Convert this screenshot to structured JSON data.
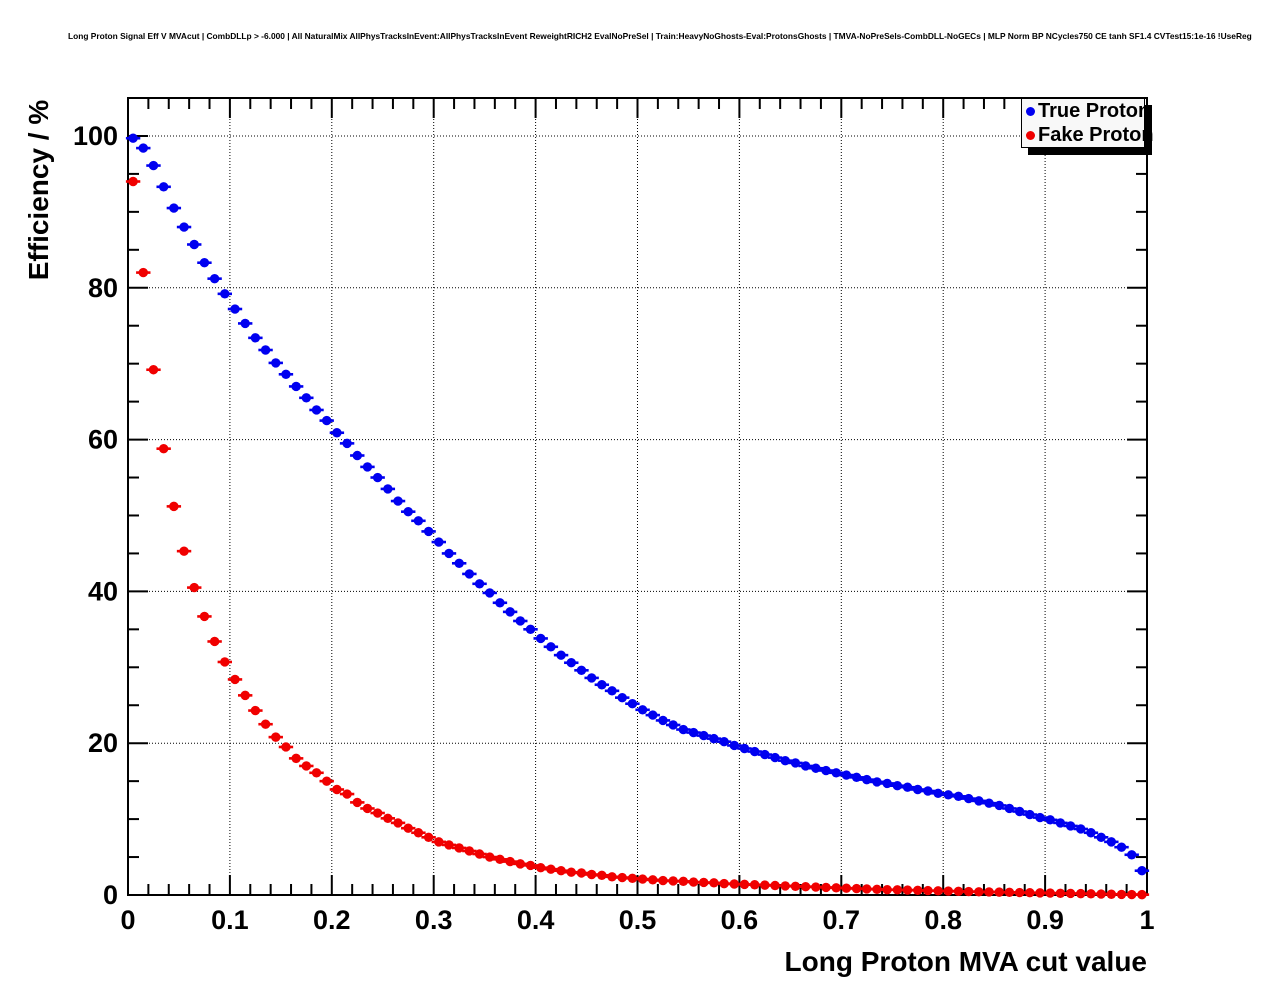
{
  "chart_data": {
    "type": "scatter",
    "title": "Long Proton Signal Eff V MVAcut | CombDLLp > -6.000 | All NaturalMix AllPhysTracksInEvent:AllPhysTracksInEvent ReweightRICH2 EvalNoPreSel | Train:HeavyNoGhosts-Eval:ProtonsGhosts | TMVA-NoPreSels-CombDLL-NoGECs | MLP Norm BP NCycles750 CE tanh SF1.4 CVTest15:1e-16 !UseReg",
    "xlabel": "Long Proton MVA cut value",
    "ylabel": "Efficiency / %",
    "xlim": [
      0,
      1
    ],
    "ylim": [
      0,
      105
    ],
    "grid": true,
    "x_ticks": [
      {
        "v": 0.0,
        "label": "0"
      },
      {
        "v": 0.1,
        "label": "0.1"
      },
      {
        "v": 0.2,
        "label": "0.2"
      },
      {
        "v": 0.3,
        "label": "0.3"
      },
      {
        "v": 0.4,
        "label": "0.4"
      },
      {
        "v": 0.5,
        "label": "0.5"
      },
      {
        "v": 0.6,
        "label": "0.6"
      },
      {
        "v": 0.7,
        "label": "0.7"
      },
      {
        "v": 0.8,
        "label": "0.8"
      },
      {
        "v": 0.9,
        "label": "0.9"
      },
      {
        "v": 1.0,
        "label": "1"
      }
    ],
    "y_ticks": [
      {
        "v": 0,
        "label": "0"
      },
      {
        "v": 20,
        "label": "20"
      },
      {
        "v": 40,
        "label": "40"
      },
      {
        "v": 60,
        "label": "60"
      },
      {
        "v": 80,
        "label": "80"
      },
      {
        "v": 100,
        "label": "100"
      }
    ],
    "x_minor_step": 0.02,
    "y_minor_step": 5,
    "bin_half_width": 0.005,
    "legend": {
      "position": "top-right",
      "entries": [
        {
          "label": "True Proton",
          "color": "#0000f0"
        },
        {
          "label": "Fake Proton",
          "color": "#f00000"
        }
      ]
    },
    "x": [
      0.005,
      0.015,
      0.025,
      0.035,
      0.045,
      0.055,
      0.065,
      0.075,
      0.085,
      0.095,
      0.105,
      0.115,
      0.125,
      0.135,
      0.145,
      0.155,
      0.165,
      0.175,
      0.185,
      0.195,
      0.205,
      0.215,
      0.225,
      0.235,
      0.245,
      0.255,
      0.265,
      0.275,
      0.285,
      0.295,
      0.305,
      0.315,
      0.325,
      0.335,
      0.345,
      0.355,
      0.365,
      0.375,
      0.385,
      0.395,
      0.405,
      0.415,
      0.425,
      0.435,
      0.445,
      0.455,
      0.465,
      0.475,
      0.485,
      0.495,
      0.505,
      0.515,
      0.525,
      0.535,
      0.545,
      0.555,
      0.565,
      0.575,
      0.585,
      0.595,
      0.605,
      0.615,
      0.625,
      0.635,
      0.645,
      0.655,
      0.665,
      0.675,
      0.685,
      0.695,
      0.705,
      0.715,
      0.725,
      0.735,
      0.745,
      0.755,
      0.765,
      0.775,
      0.785,
      0.795,
      0.805,
      0.815,
      0.825,
      0.835,
      0.845,
      0.855,
      0.865,
      0.875,
      0.885,
      0.895,
      0.905,
      0.915,
      0.925,
      0.935,
      0.945,
      0.955,
      0.965,
      0.975,
      0.985,
      0.995
    ],
    "series": [
      {
        "name": "True Proton",
        "color": "#0000f0",
        "values": [
          99.7,
          98.4,
          96.1,
          93.3,
          90.5,
          88.0,
          85.7,
          83.3,
          81.2,
          79.2,
          77.2,
          75.3,
          73.4,
          71.8,
          70.1,
          68.6,
          67.0,
          65.5,
          63.9,
          62.5,
          60.9,
          59.5,
          57.9,
          56.4,
          55.0,
          53.5,
          51.9,
          50.5,
          49.3,
          47.9,
          46.5,
          45.0,
          43.7,
          42.3,
          41.0,
          39.8,
          38.5,
          37.3,
          36.1,
          35.0,
          33.8,
          32.7,
          31.6,
          30.6,
          29.6,
          28.6,
          27.7,
          26.9,
          26.0,
          25.2,
          24.4,
          23.7,
          23.0,
          22.4,
          21.8,
          21.4,
          21.0,
          20.6,
          20.2,
          19.7,
          19.3,
          18.9,
          18.5,
          18.1,
          17.7,
          17.4,
          17.0,
          16.7,
          16.4,
          16.1,
          15.8,
          15.5,
          15.2,
          14.9,
          14.7,
          14.4,
          14.2,
          13.9,
          13.7,
          13.4,
          13.2,
          13.0,
          12.7,
          12.4,
          12.1,
          11.8,
          11.4,
          11.0,
          10.6,
          10.2,
          9.9,
          9.5,
          9.1,
          8.7,
          8.2,
          7.6,
          7.0,
          6.3,
          5.3,
          3.2
        ]
      },
      {
        "name": "Fake Proton",
        "color": "#f00000",
        "values": [
          94.0,
          82.0,
          69.2,
          58.8,
          51.2,
          45.3,
          40.5,
          36.7,
          33.4,
          30.7,
          28.4,
          26.3,
          24.3,
          22.5,
          20.8,
          19.5,
          18.0,
          17.0,
          16.1,
          15.0,
          13.9,
          13.3,
          12.2,
          11.4,
          10.8,
          10.1,
          9.5,
          8.8,
          8.2,
          7.6,
          7.0,
          6.6,
          6.2,
          5.8,
          5.4,
          5.0,
          4.7,
          4.4,
          4.1,
          3.9,
          3.6,
          3.4,
          3.2,
          3.0,
          2.9,
          2.7,
          2.6,
          2.4,
          2.3,
          2.2,
          2.1,
          2.0,
          1.9,
          1.85,
          1.8,
          1.7,
          1.65,
          1.6,
          1.5,
          1.45,
          1.4,
          1.35,
          1.3,
          1.25,
          1.2,
          1.15,
          1.1,
          1.05,
          1.0,
          0.95,
          0.9,
          0.85,
          0.8,
          0.75,
          0.7,
          0.68,
          0.65,
          0.62,
          0.58,
          0.55,
          0.52,
          0.48,
          0.45,
          0.42,
          0.4,
          0.38,
          0.35,
          0.32,
          0.3,
          0.28,
          0.25,
          0.22,
          0.2,
          0.18,
          0.15,
          0.13,
          0.1,
          0.08,
          0.06,
          0.05
        ]
      }
    ]
  }
}
